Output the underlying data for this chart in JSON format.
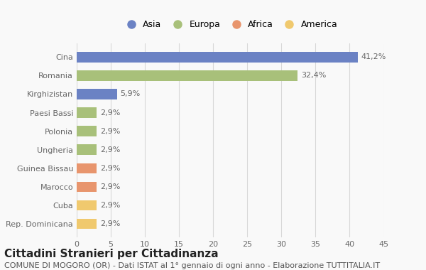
{
  "categories": [
    "Rep. Dominicana",
    "Cuba",
    "Marocco",
    "Guinea Bissau",
    "Ungheria",
    "Polonia",
    "Paesi Bassi",
    "Kirghizistan",
    "Romania",
    "Cina"
  ],
  "values": [
    2.9,
    2.9,
    2.9,
    2.9,
    2.9,
    2.9,
    2.9,
    5.9,
    32.4,
    41.2
  ],
  "labels": [
    "2,9%",
    "2,9%",
    "2,9%",
    "2,9%",
    "2,9%",
    "2,9%",
    "2,9%",
    "5,9%",
    "32,4%",
    "41,2%"
  ],
  "colors": [
    "#f0c96e",
    "#f0c96e",
    "#e8956d",
    "#e8956d",
    "#a8c07a",
    "#a8c07a",
    "#a8c07a",
    "#6b82c4",
    "#a8c07a",
    "#6b82c4"
  ],
  "legend_labels": [
    "Asia",
    "Europa",
    "Africa",
    "America"
  ],
  "legend_colors": [
    "#6b82c4",
    "#a8c07a",
    "#e8956d",
    "#f0c96e"
  ],
  "title": "Cittadini Stranieri per Cittadinanza",
  "subtitle": "COMUNE DI MOGORO (OR) - Dati ISTAT al 1° gennaio di ogni anno - Elaborazione TUTTITALIA.IT",
  "xlim": [
    0,
    45
  ],
  "xticks": [
    0,
    5,
    10,
    15,
    20,
    25,
    30,
    35,
    40,
    45
  ],
  "background_color": "#f9f9f9",
  "grid_color": "#d8d8d8",
  "bar_height": 0.55,
  "title_fontsize": 11,
  "subtitle_fontsize": 8,
  "label_fontsize": 8,
  "tick_fontsize": 8
}
